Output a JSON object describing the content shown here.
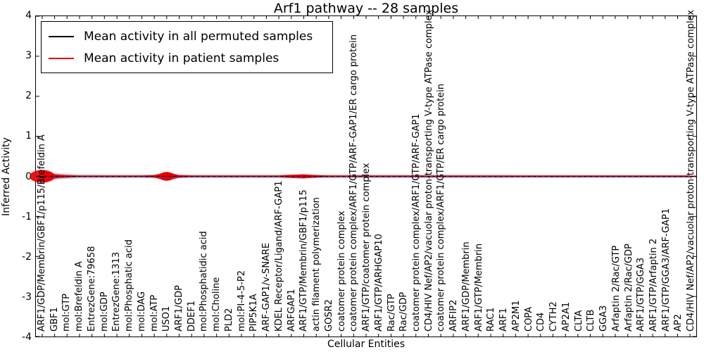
{
  "figure": {
    "title": "Arf1 pathway -- 28 samples",
    "xlabel": "Cellular Entities",
    "ylabel": "Inferred Activity"
  },
  "chart_data": {
    "type": "line",
    "title": "Arf1 pathway -- 28 samples",
    "xlabel": "Cellular Entities",
    "ylabel": "Inferred Activity",
    "ylim": [
      -4,
      4
    ],
    "yticks": [
      4,
      3,
      2,
      1,
      0,
      -1,
      -2,
      -3,
      -4
    ],
    "grid": false,
    "legend_position": "upper left",
    "zero_reference_line_color": "#2222dd",
    "categories": [
      "ARF1/GDP/Membrin/GBF1/p115/Brefeldin A",
      "GBF1",
      "mol:GTP",
      "mol:Brefeldin A",
      "EntrezGene:79658",
      "mol:GDP",
      "EntrezGene:1313",
      "mol:Phosphatic acid",
      "mol:DAG",
      "mol:ATP",
      "USO1",
      "ARF1/GDP",
      "DDEF1",
      "mol:Phosphatidic acid",
      "mol:Choline",
      "PLD2",
      "mol:PI-4-5-P2",
      "PIP5K1A",
      "ARF-GAP1/v-SNARE",
      "KDEL Receptor/Ligand/ARF-GAP1",
      "ARFGAP1",
      "ARF1/GTP/Membrin/GBF1/p115",
      "actin filament polymerization",
      "GOSR2",
      "coatomer protein complex",
      "coatomer protein complex/ARF1/GTP/ARF-GAP1/ER cargo protein",
      "ARF1/GTP/coatomer protein complex",
      "ARF1/GTP/ARHGAP10",
      "Rac/GTP",
      "Rac/GDP",
      "coatomer protein complex/ARF1/GTP/ARF-GAP1",
      "CD4/HIV Nef/AP2/vacuolar proton-transporting V-type ATPase complex",
      "coatomer protein complex/ARF1/GTP/ER cargo protein",
      "ARFIP2",
      "ARF1/GDP/Membrin",
      "ARF1/GTP/Membrin",
      "RAC1",
      "ARF1",
      "AP2M1",
      "COPA",
      "CD4",
      "CYTH2",
      "AP2A1",
      "CLTA",
      "CLTB",
      "GGA3",
      "Arfaptin 2/Rac/GTP",
      "Arfaptin 2/Rac/GDP",
      "ARF1/GTP/GGA3",
      "ARF1/GTP/Arfaptin 2",
      "ARF1/GTP/GGA3/ARF-GAP1",
      "AP2",
      "CD4/HIV Nef/AP2/vacuolar proton-transporting V-type ATPase complex"
    ],
    "series": [
      {
        "name": "Mean activity in all permuted samples",
        "color": "#000000",
        "values": [
          0,
          0,
          0,
          0,
          0,
          0,
          0,
          0,
          0,
          0,
          0,
          0,
          0,
          0,
          0,
          0,
          0,
          0,
          0,
          0,
          0,
          0,
          0,
          0,
          0,
          0,
          0,
          0,
          0,
          0,
          0,
          0,
          0,
          0,
          0,
          0,
          0,
          0,
          0,
          0,
          0,
          0,
          0,
          0,
          0,
          0,
          0,
          0,
          0,
          0,
          0,
          0,
          0
        ]
      },
      {
        "name": "Mean activity in patient samples",
        "color": "#e60000",
        "values": [
          0,
          0,
          0,
          0,
          0,
          0,
          0,
          0,
          0,
          0,
          0,
          0,
          0,
          0,
          0,
          0,
          0,
          0,
          0,
          0,
          0,
          0,
          0,
          0,
          0,
          0,
          0,
          0,
          0,
          0,
          0,
          0,
          0,
          0,
          0,
          0,
          0,
          0,
          0,
          0,
          0,
          0,
          0,
          0,
          0,
          0,
          0,
          0,
          0,
          0,
          0,
          0,
          0
        ]
      }
    ],
    "permuted_band_halfwidth": [
      0.12,
      0.08,
      0.06,
      0.05,
      0.05,
      0.045,
      0.045,
      0.045,
      0.045,
      0.05,
      0.07,
      0.05,
      0.045,
      0.045,
      0.045,
      0.045,
      0.045,
      0.045,
      0.045,
      0.045,
      0.05,
      0.05,
      0.045,
      0.045,
      0.045,
      0.045,
      0.045,
      0.045,
      0.045,
      0.045,
      0.045,
      0.045,
      0.045,
      0.045,
      0.045,
      0.045,
      0.045,
      0.045,
      0.04,
      0.04,
      0.04,
      0.04,
      0.04,
      0.04,
      0.04,
      0.04,
      0.04,
      0.04,
      0.04,
      0.04,
      0.04,
      0.04,
      0.04
    ],
    "patient_violin_halfwidth": [
      0.16,
      0.05,
      0.03,
      0.02,
      0.02,
      0.02,
      0.02,
      0.02,
      0.02,
      0.03,
      0.11,
      0.03,
      0.02,
      0.02,
      0.02,
      0.02,
      0.02,
      0.02,
      0.02,
      0.02,
      0.04,
      0.05,
      0.03,
      0.02,
      0.02,
      0.02,
      0.02,
      0.02,
      0.02,
      0.02,
      0.02,
      0.02,
      0.02,
      0.02,
      0.02,
      0.02,
      0.02,
      0.02,
      0.02,
      0.02,
      0.02,
      0.02,
      0.02,
      0.02,
      0.02,
      0.02,
      0.02,
      0.02,
      0.02,
      0.02,
      0.02,
      0.02,
      0.02
    ]
  }
}
